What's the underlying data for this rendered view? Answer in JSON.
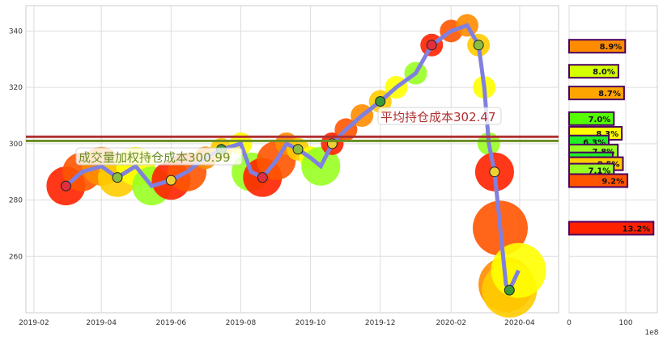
{
  "chart_data": [
    {
      "type": "line",
      "x_tick_labels": [
        "2019-02",
        "2019-04",
        "2019-06",
        "2019-08",
        "2019-10",
        "2019-12",
        "2020-02",
        "2020-04"
      ],
      "y_tick_labels": [
        "260",
        "280",
        "300",
        "320",
        "340"
      ],
      "ylim": [
        240,
        349
      ],
      "xlim": [
        "2019-01-25",
        "2020-05-05"
      ],
      "grid": true,
      "series": [
        {
          "color": "#8080e0",
          "points": [
            [
              "2019-03-01",
              285
            ],
            [
              "2019-03-15",
              290
            ],
            [
              "2019-04-01",
              292
            ],
            [
              "2019-04-15",
              288
            ],
            [
              "2019-05-01",
              292
            ],
            [
              "2019-05-15",
              285
            ],
            [
              "2019-06-01",
              287
            ],
            [
              "2019-06-15",
              290
            ],
            [
              "2019-07-01",
              295
            ],
            [
              "2019-07-15",
              298
            ],
            [
              "2019-08-01",
              300
            ],
            [
              "2019-08-10",
              290
            ],
            [
              "2019-08-20",
              288
            ],
            [
              "2019-09-01",
              294
            ],
            [
              "2019-09-10",
              300
            ],
            [
              "2019-09-20",
              298
            ],
            [
              "2019-10-01",
              295
            ],
            [
              "2019-10-10",
              292
            ],
            [
              "2019-10-20",
              300
            ],
            [
              "2019-11-01",
              305
            ],
            [
              "2019-11-15",
              310
            ],
            [
              "2019-12-01",
              315
            ],
            [
              "2019-12-15",
              320
            ],
            [
              "2020-01-01",
              325
            ],
            [
              "2020-01-15",
              335
            ],
            [
              "2020-02-01",
              340
            ],
            [
              "2020-02-15",
              342
            ],
            [
              "2020-02-25",
              335
            ],
            [
              "2020-03-01",
              320
            ],
            [
              "2020-03-05",
              300
            ],
            [
              "2020-03-10",
              290
            ],
            [
              "2020-03-15",
              270
            ],
            [
              "2020-03-20",
              250
            ],
            [
              "2020-03-23",
              248
            ],
            [
              "2020-03-31",
              255
            ]
          ]
        }
      ],
      "hlines": [
        {
          "value": 302.47,
          "color": "#b03030",
          "label": "平均持仓成本302.47"
        },
        {
          "value": 300.99,
          "color": "#6b8e23",
          "label": "成交量加权持仓成本300.99"
        }
      ]
    },
    {
      "type": "bar",
      "orientation": "horizontal",
      "x_tick_labels": [
        "0",
        "100"
      ],
      "x_scale_label": "1e8",
      "xlim": [
        0,
        155
      ],
      "ylim": [
        240,
        349
      ],
      "bars": [
        {
          "price": 334.6,
          "value": 99,
          "label": "8.9%",
          "color": "#ff8c00"
        },
        {
          "price": 325.7,
          "value": 87,
          "label": "8.0%",
          "color": "#d4ff00"
        },
        {
          "price": 318.0,
          "value": 97,
          "label": "8.7%",
          "color": "#ffa500"
        },
        {
          "price": 308.9,
          "value": 79,
          "label": "7.0%",
          "color": "#55ff00"
        },
        {
          "price": 303.7,
          "value": 93,
          "label": "8.3%",
          "color": "#ffff00"
        },
        {
          "price": 300.6,
          "value": 70,
          "label": "6.3%",
          "color": "#22ee22"
        },
        {
          "price": 297.4,
          "value": 86,
          "label": "7.8%",
          "color": "#99ff22"
        },
        {
          "price": 294.6,
          "value": 77,
          "label": "6.9%",
          "color": "#22ee22"
        },
        {
          "price": 292.9,
          "value": 95,
          "label": "8.5%",
          "color": "#ffcc00"
        },
        {
          "price": 290.6,
          "value": 79,
          "label": "7.1%",
          "color": "#99ff22"
        },
        {
          "price": 286.9,
          "value": 103,
          "label": "9.2%",
          "color": "#ff5500"
        },
        {
          "price": 270.0,
          "value": 149,
          "label": "13.2%",
          "color": "#ff2200"
        }
      ]
    }
  ]
}
